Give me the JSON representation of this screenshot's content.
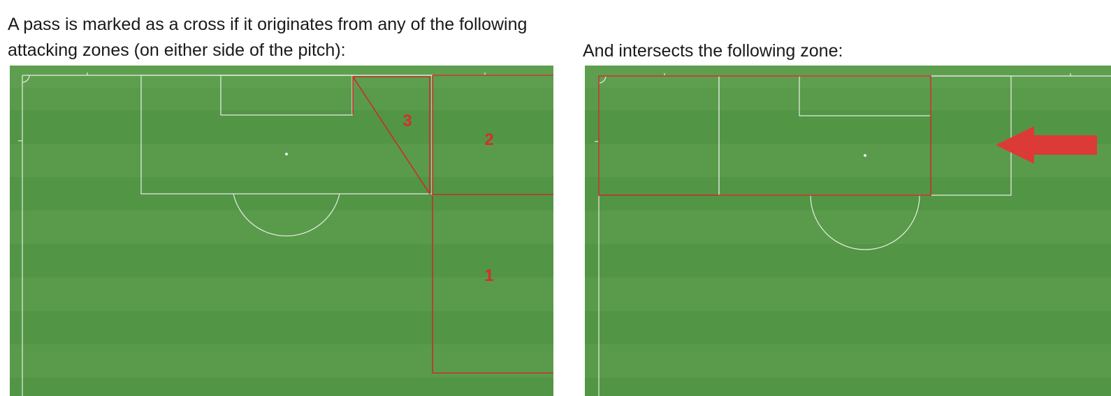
{
  "captions": {
    "left_line1": "A pass is marked as a cross if it originates from any of the following",
    "left_line2": "attacking zones  (on either side of the pitch):",
    "right": "And intersects the following zone:"
  },
  "zones": {
    "zone1_label": "1",
    "zone2_label": "2",
    "zone3_label": "3"
  },
  "colors": {
    "pitch_stripe_a": "#5a9b4b",
    "pitch_stripe_b": "#529545",
    "pitch_line": "#e8efe6",
    "zone_outline": "#c62f2a",
    "zone_text": "#d32f2f",
    "arrow": "#dc3a36"
  },
  "icons": {
    "direction_arrow": "left-arrow-icon"
  }
}
